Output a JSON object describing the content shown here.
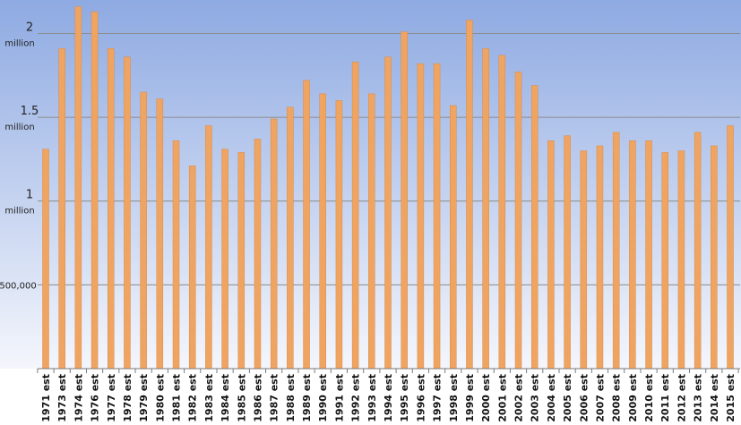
{
  "chart_data": {
    "type": "bar",
    "title": "",
    "xlabel": "",
    "ylabel": "",
    "ylim": [
      0,
      2200000
    ],
    "y_ticks": [
      {
        "value": 500000,
        "lines": [
          "500,000"
        ]
      },
      {
        "value": 1000000,
        "lines": [
          "1",
          "million"
        ]
      },
      {
        "value": 1500000,
        "lines": [
          "1.5",
          "million"
        ]
      },
      {
        "value": 2000000,
        "lines": [
          "2",
          "million"
        ]
      }
    ],
    "categories": [
      "1971 est",
      "1973 est",
      "1974 est",
      "1976 est",
      "1977 est",
      "1978 est",
      "1979 est",
      "1980 est",
      "1981 est",
      "1982 est",
      "1983 est",
      "1984 est",
      "1985 est",
      "1986 est",
      "1987 est",
      "1988 est",
      "1989 est",
      "1990 est",
      "1991 est",
      "1992 est",
      "1993 est",
      "1994 est",
      "1995 est",
      "1996 est",
      "1997 est",
      "1998 est",
      "1999 est",
      "2000 est",
      "2001 est",
      "2002 est",
      "2003 est",
      "2004 est",
      "2005 est",
      "2006 est",
      "2007 est",
      "2008 est",
      "2009 est",
      "2010 est",
      "2011 est",
      "2012 est",
      "2013 est",
      "2014 est",
      "2015 est"
    ],
    "values": [
      1310000,
      1910000,
      2160000,
      2130000,
      1910000,
      1860000,
      1650000,
      1610000,
      1360000,
      1210000,
      1450000,
      1310000,
      1290000,
      1370000,
      1490000,
      1560000,
      1720000,
      1640000,
      1600000,
      1830000,
      1640000,
      1860000,
      2010000,
      1820000,
      1820000,
      1570000,
      2080000,
      1910000,
      1870000,
      1770000,
      1690000,
      1360000,
      1390000,
      1300000,
      1330000,
      1410000,
      1360000,
      1360000,
      1290000,
      1300000,
      1410000,
      1330000,
      1450000
    ],
    "grid": true,
    "legend": "none",
    "colors": {
      "bar": "#F0A462",
      "bar_edge": "#D98B47",
      "bg_top": "#8EAAE2",
      "bg_bottom": "#F4F6FC",
      "grid": "#8C8C8C",
      "axis": "#7A7A7A"
    }
  }
}
